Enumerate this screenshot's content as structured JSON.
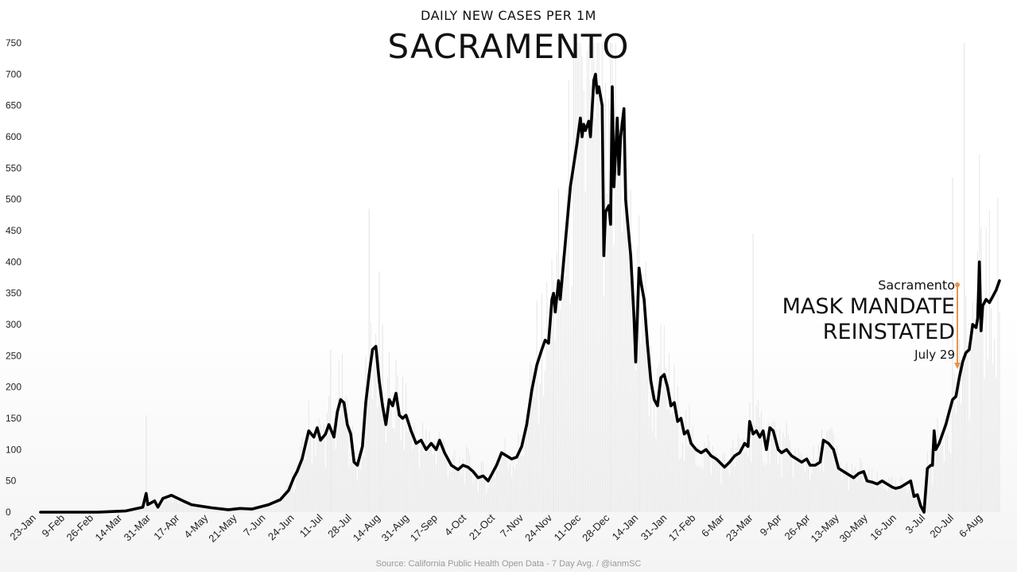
{
  "header": {
    "subtitle": "DAILY NEW CASES PER 1M",
    "title": "SACRAMENTO"
  },
  "footer": {
    "source": "Source: California Public Health Open Data - 7 Day Avg. / @ianmSC"
  },
  "annotation": {
    "city": "Sacramento",
    "line1": "MASK MANDATE",
    "line2": "REINSTATED",
    "date": "July 29",
    "arrow_color": "#e8944a"
  },
  "colors": {
    "line": "#000000",
    "daily_bars": "#e6e6e6",
    "axis_text": "#222222"
  },
  "chart_data": {
    "type": "line",
    "title": "SACRAMENTO",
    "subtitle": "DAILY NEW CASES PER 1M",
    "xlabel": "",
    "ylabel": "",
    "x_start_date": "2020-01-23",
    "ylim": [
      0,
      750
    ],
    "yticks": [
      0,
      50,
      100,
      150,
      200,
      250,
      300,
      350,
      400,
      450,
      500,
      550,
      600,
      650,
      700,
      750
    ],
    "xtick_labels": [
      "23-Jan",
      "9-Feb",
      "26-Feb",
      "14-Mar",
      "31-Mar",
      "17-Apr",
      "4-May",
      "21-May",
      "7-Jun",
      "24-Jun",
      "11-Jul",
      "28-Jul",
      "14-Aug",
      "31-Aug",
      "17-Sep",
      "4-Oct",
      "21-Oct",
      "7-Nov",
      "24-Nov",
      "11-Dec",
      "28-Dec",
      "14-Jan",
      "31-Jan",
      "17-Feb",
      "6-Mar",
      "23-Mar",
      "9-Apr",
      "26-Apr",
      "13-May",
      "30-May",
      "16-Jun",
      "3-Jul",
      "20-Jul",
      "6-Aug"
    ],
    "grid": false,
    "series": [
      {
        "name": "7 Day Avg.",
        "points": [
          [
            "23-Jan",
            0
          ],
          [
            "9-Feb",
            0
          ],
          [
            "26-Feb",
            0
          ],
          [
            "14-Mar",
            2
          ],
          [
            "24-Mar",
            8
          ],
          [
            "26-Mar",
            30
          ],
          [
            "27-Mar",
            12
          ],
          [
            "31-Mar",
            18
          ],
          [
            "2-Apr",
            8
          ],
          [
            "5-Apr",
            22
          ],
          [
            "10-Apr",
            27
          ],
          [
            "14-Apr",
            22
          ],
          [
            "17-Apr",
            18
          ],
          [
            "22-Apr",
            12
          ],
          [
            "4-May",
            7
          ],
          [
            "14-May",
            4
          ],
          [
            "21-May",
            6
          ],
          [
            "28-May",
            5
          ],
          [
            "7-Jun",
            12
          ],
          [
            "14-Jun",
            20
          ],
          [
            "19-Jun",
            35
          ],
          [
            "22-Jun",
            55
          ],
          [
            "24-Jun",
            65
          ],
          [
            "27-Jun",
            85
          ],
          [
            "1-Jul",
            130
          ],
          [
            "4-Jul",
            120
          ],
          [
            "6-Jul",
            135
          ],
          [
            "8-Jul",
            115
          ],
          [
            "11-Jul",
            125
          ],
          [
            "13-Jul",
            140
          ],
          [
            "16-Jul",
            120
          ],
          [
            "18-Jul",
            160
          ],
          [
            "20-Jul",
            180
          ],
          [
            "22-Jul",
            175
          ],
          [
            "24-Jul",
            140
          ],
          [
            "26-Jul",
            125
          ],
          [
            "28-Jul",
            80
          ],
          [
            "30-Jul",
            75
          ],
          [
            "2-Aug",
            105
          ],
          [
            "4-Aug",
            175
          ],
          [
            "6-Aug",
            220
          ],
          [
            "8-Aug",
            260
          ],
          [
            "10-Aug",
            265
          ],
          [
            "12-Aug",
            210
          ],
          [
            "14-Aug",
            170
          ],
          [
            "16-Aug",
            140
          ],
          [
            "18-Aug",
            180
          ],
          [
            "20-Aug",
            170
          ],
          [
            "22-Aug",
            190
          ],
          [
            "24-Aug",
            155
          ],
          [
            "26-Aug",
            150
          ],
          [
            "28-Aug",
            155
          ],
          [
            "31-Aug",
            130
          ],
          [
            "3-Sep",
            110
          ],
          [
            "6-Sep",
            115
          ],
          [
            "9-Sep",
            100
          ],
          [
            "12-Sep",
            110
          ],
          [
            "15-Sep",
            100
          ],
          [
            "17-Sep",
            115
          ],
          [
            "20-Sep",
            95
          ],
          [
            "24-Sep",
            75
          ],
          [
            "28-Sep",
            68
          ],
          [
            "1-Oct",
            75
          ],
          [
            "4-Oct",
            72
          ],
          [
            "7-Oct",
            65
          ],
          [
            "10-Oct",
            55
          ],
          [
            "13-Oct",
            58
          ],
          [
            "16-Oct",
            50
          ],
          [
            "18-Oct",
            60
          ],
          [
            "21-Oct",
            75
          ],
          [
            "24-Oct",
            95
          ],
          [
            "27-Oct",
            90
          ],
          [
            "30-Oct",
            85
          ],
          [
            "2-Nov",
            88
          ],
          [
            "5-Nov",
            105
          ],
          [
            "8-Nov",
            140
          ],
          [
            "11-Nov",
            195
          ],
          [
            "14-Nov",
            235
          ],
          [
            "17-Nov",
            260
          ],
          [
            "19-Nov",
            275
          ],
          [
            "21-Nov",
            270
          ],
          [
            "23-Nov",
            340
          ],
          [
            "24-Nov",
            350
          ],
          [
            "25-Nov",
            320
          ],
          [
            "27-Nov",
            370
          ],
          [
            "28-Nov",
            340
          ],
          [
            "30-Nov",
            400
          ],
          [
            "2-Dec",
            460
          ],
          [
            "4-Dec",
            520
          ],
          [
            "6-Dec",
            555
          ],
          [
            "8-Dec",
            590
          ],
          [
            "10-Dec",
            630
          ],
          [
            "11-Dec",
            600
          ],
          [
            "12-Dec",
            620
          ],
          [
            "13-Dec",
            610
          ],
          [
            "15-Dec",
            625
          ],
          [
            "16-Dec",
            600
          ],
          [
            "18-Dec",
            690
          ],
          [
            "19-Dec",
            700
          ],
          [
            "20-Dec",
            670
          ],
          [
            "21-Dec",
            680
          ],
          [
            "23-Dec",
            650
          ],
          [
            "24-Dec",
            410
          ],
          [
            "25-Dec",
            480
          ],
          [
            "27-Dec",
            490
          ],
          [
            "28-Dec",
            460
          ],
          [
            "29-Dec",
            680
          ],
          [
            "30-Dec",
            520
          ],
          [
            "1-Jan",
            630
          ],
          [
            "2-Jan",
            540
          ],
          [
            "3-Jan",
            600
          ],
          [
            "5-Jan",
            645
          ],
          [
            "6-Jan",
            500
          ],
          [
            "8-Jan",
            440
          ],
          [
            "9-Jan",
            410
          ],
          [
            "11-Jan",
            310
          ],
          [
            "12-Jan",
            240
          ],
          [
            "14-Jan",
            390
          ],
          [
            "15-Jan",
            370
          ],
          [
            "17-Jan",
            340
          ],
          [
            "19-Jan",
            270
          ],
          [
            "21-Jan",
            210
          ],
          [
            "23-Jan",
            180
          ],
          [
            "25-Jan",
            170
          ],
          [
            "27-Jan",
            215
          ],
          [
            "29-Jan",
            220
          ],
          [
            "31-Jan",
            200
          ],
          [
            "2-Feb",
            170
          ],
          [
            "4-Feb",
            175
          ],
          [
            "6-Feb",
            145
          ],
          [
            "8-Feb",
            150
          ],
          [
            "10-Feb",
            125
          ],
          [
            "12-Feb",
            130
          ],
          [
            "14-Feb",
            110
          ],
          [
            "17-Feb",
            100
          ],
          [
            "20-Feb",
            95
          ],
          [
            "23-Feb",
            100
          ],
          [
            "26-Feb",
            90
          ],
          [
            "1-Mar",
            85
          ],
          [
            "3-Mar",
            80
          ],
          [
            "6-Mar",
            72
          ],
          [
            "9-Mar",
            80
          ],
          [
            "12-Mar",
            90
          ],
          [
            "15-Mar",
            95
          ],
          [
            "18-Mar",
            110
          ],
          [
            "20-Mar",
            105
          ],
          [
            "21-Mar",
            145
          ],
          [
            "23-Mar",
            125
          ],
          [
            "25-Mar",
            130
          ],
          [
            "27-Mar",
            120
          ],
          [
            "29-Mar",
            130
          ],
          [
            "31-Mar",
            100
          ],
          [
            "2-Apr",
            135
          ],
          [
            "4-Apr",
            130
          ],
          [
            "7-Apr",
            100
          ],
          [
            "9-Apr",
            95
          ],
          [
            "12-Apr",
            100
          ],
          [
            "15-Apr",
            90
          ],
          [
            "18-Apr",
            85
          ],
          [
            "21-Apr",
            80
          ],
          [
            "24-Apr",
            85
          ],
          [
            "26-Apr",
            75
          ],
          [
            "29-Apr",
            75
          ],
          [
            "2-May",
            80
          ],
          [
            "4-May",
            115
          ],
          [
            "7-May",
            110
          ],
          [
            "10-May",
            100
          ],
          [
            "13-May",
            70
          ],
          [
            "16-May",
            65
          ],
          [
            "19-May",
            60
          ],
          [
            "22-May",
            55
          ],
          [
            "25-May",
            62
          ],
          [
            "28-May",
            65
          ],
          [
            "30-May",
            50
          ],
          [
            "2-Jun",
            48
          ],
          [
            "5-Jun",
            45
          ],
          [
            "8-Jun",
            50
          ],
          [
            "11-Jun",
            45
          ],
          [
            "14-Jun",
            40
          ],
          [
            "16-Jun",
            38
          ],
          [
            "19-Jun",
            40
          ],
          [
            "22-Jun",
            45
          ],
          [
            "25-Jun",
            50
          ],
          [
            "27-Jun",
            25
          ],
          [
            "29-Jun",
            28
          ],
          [
            "1-Jul",
            10
          ],
          [
            "3-Jul",
            0
          ],
          [
            "5-Jul",
            70
          ],
          [
            "7-Jul",
            75
          ],
          [
            "8-Jul",
            75
          ],
          [
            "9-Jul",
            130
          ],
          [
            "10-Jul",
            100
          ],
          [
            "12-Jul",
            110
          ],
          [
            "14-Jul",
            125
          ],
          [
            "16-Jul",
            140
          ],
          [
            "18-Jul",
            160
          ],
          [
            "20-Jul",
            180
          ],
          [
            "22-Jul",
            185
          ],
          [
            "24-Jul",
            215
          ],
          [
            "26-Jul",
            240
          ],
          [
            "28-Jul",
            255
          ],
          [
            "30-Jul",
            260
          ],
          [
            "1-Aug",
            300
          ],
          [
            "3-Aug",
            295
          ],
          [
            "4-Aug",
            310
          ],
          [
            "5-Aug",
            400
          ],
          [
            "6-Aug",
            290
          ],
          [
            "7-Aug",
            330
          ],
          [
            "9-Aug",
            340
          ],
          [
            "11-Aug",
            335
          ],
          [
            "13-Aug",
            345
          ],
          [
            "15-Aug",
            355
          ],
          [
            "17-Aug",
            370
          ]
        ]
      }
    ],
    "daily_bars_peaks": [
      [
        "26-Mar",
        155
      ],
      [
        "14-Jul",
        260
      ],
      [
        "6-Aug",
        485
      ],
      [
        "12-Aug",
        385
      ],
      [
        "14-Aug",
        300
      ],
      [
        "24-Nov",
        370
      ],
      [
        "11-Dec",
        730
      ],
      [
        "28-Dec",
        750
      ],
      [
        "14-Jan",
        390
      ],
      [
        "23-Mar",
        445
      ],
      [
        "20-Jul",
        535
      ],
      [
        "27-Jul",
        750
      ],
      [
        "6-Aug",
        455
      ]
    ]
  }
}
